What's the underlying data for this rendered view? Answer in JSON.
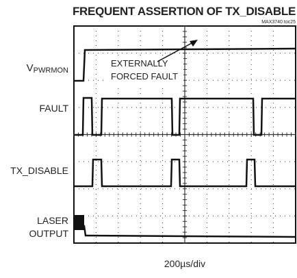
{
  "title": "FREQUENT ASSERTION OF TX_DISABLE",
  "subtitle": "MAX3740 toc25",
  "traces": [
    {
      "label_main": "V",
      "label_sub": "PWRMON"
    },
    {
      "label": "FAULT"
    },
    {
      "label": "TX_DISABLE"
    },
    {
      "label_lines": [
        "LASER",
        "OUTPUT"
      ]
    }
  ],
  "annotation": [
    "EXTERNALLY",
    "FORCED FAULT"
  ],
  "timebase": "200µs/div"
}
